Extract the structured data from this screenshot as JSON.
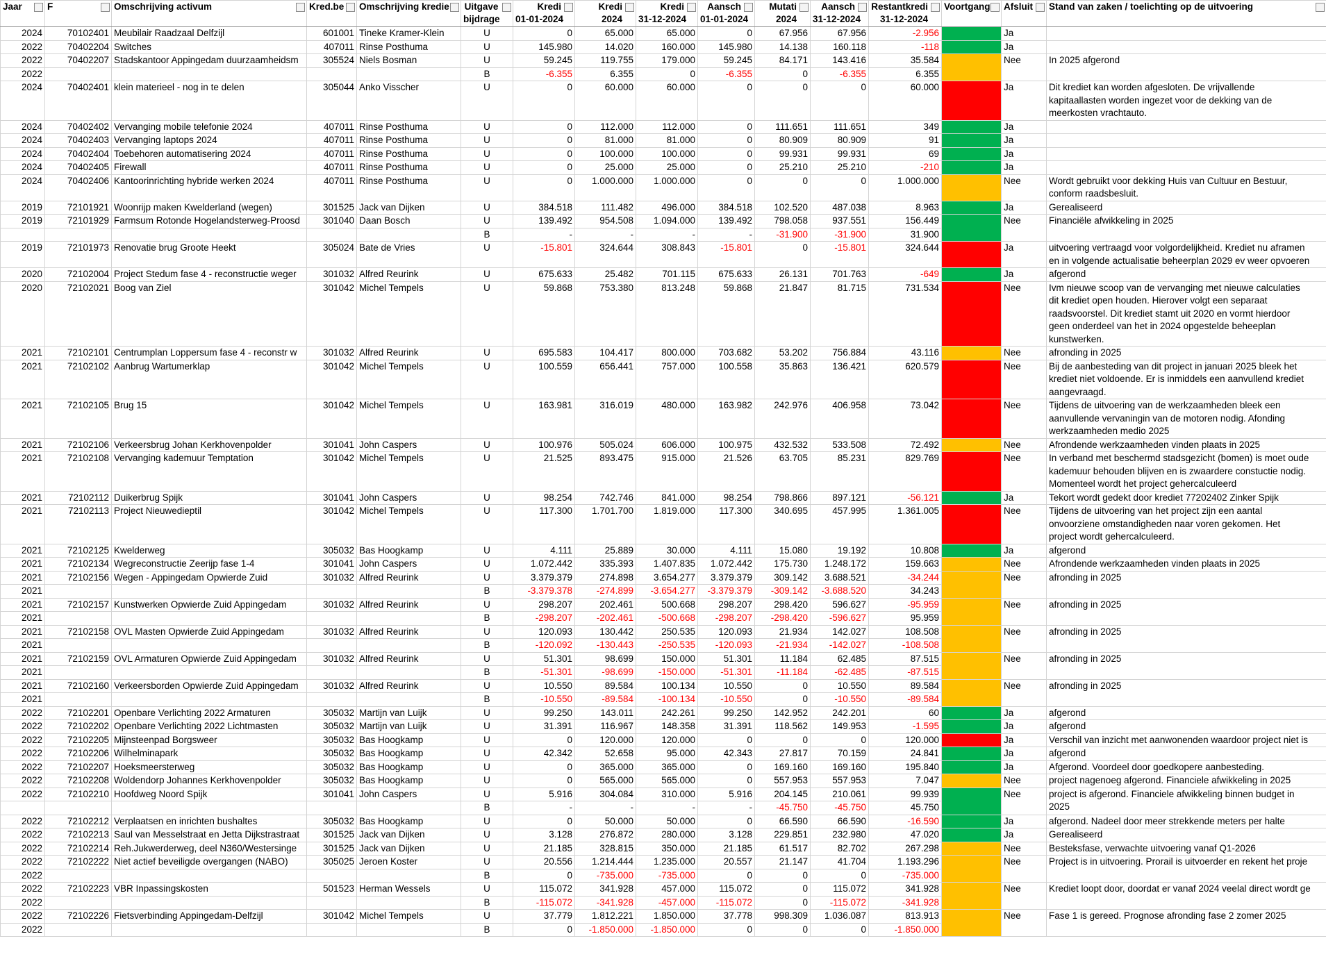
{
  "header": [
    [
      "Jaar"
    ],
    [
      "F"
    ],
    [
      "Omschrijving activum"
    ],
    [
      "Kred.be"
    ],
    [
      "Omschrijving kredie"
    ],
    [
      "Uitgave",
      "bijdrage"
    ],
    [
      "Kredi",
      "01-01-2024"
    ],
    [
      "Kredi",
      "2024"
    ],
    [
      "Kredi",
      "31-12-2024"
    ],
    [
      "Aansch",
      "01-01-2024"
    ],
    [
      "Mutati",
      "2024"
    ],
    [
      "Aansch",
      "31-12-2024"
    ],
    [
      "Restantkredi",
      "31-12-2024"
    ],
    [
      "Voortgang"
    ],
    [
      "Afsluit"
    ],
    [
      "Stand van zaken / toelichting op de uitvoering"
    ]
  ],
  "rows": [
    [
      "2024",
      "70102401",
      "Meubilair Raadzaal Delfzijl",
      "601001",
      "Tineke Kramer-Klein",
      "U",
      "0",
      "65.000",
      "65.000",
      "0",
      "67.956",
      "67.956",
      "-2.956",
      "#00b050",
      "Ja",
      null
    ],
    [
      "2022",
      "70402204",
      "Switches",
      "407011",
      "Rinse Posthuma",
      "U",
      "145.980",
      "14.020",
      "160.000",
      "145.980",
      "14.138",
      "160.118",
      "-118",
      "#00b050",
      "Ja",
      null
    ],
    [
      "2022",
      "70402207",
      "Stadskantoor Appingedam duurzaamheidsm",
      "305524",
      "Niels Bosman",
      "U",
      "59.245",
      "119.755",
      "179.000",
      "59.245",
      "84.171",
      "143.416",
      "35.584",
      "#ffc000",
      "Nee",
      [
        "In 2025 afgerond"
      ]
    ],
    [
      "2022",
      null,
      null,
      null,
      null,
      "B",
      "-6.355",
      "6.355",
      "0",
      "-6.355",
      "0",
      "-6.355",
      "6.355",
      null,
      null,
      null
    ],
    [
      "2024",
      "70402401",
      "klein materieel - nog in te delen",
      "305044",
      "Anko Visscher",
      "U",
      "0",
      "60.000",
      "60.000",
      "0",
      "0",
      "0",
      "60.000",
      "#ff0000",
      "Ja",
      [
        "Dit krediet kan worden afgesloten. De vrijvallende",
        "kapitaallasten worden ingezet voor de dekking van de",
        "meerkosten vrachtauto."
      ]
    ],
    [
      "2024",
      "70402402",
      "Vervanging mobile telefonie 2024",
      "407011",
      "Rinse Posthuma",
      "U",
      "0",
      "112.000",
      "112.000",
      "0",
      "111.651",
      "111.651",
      "349",
      "#00b050",
      "Ja",
      null
    ],
    [
      "2024",
      "70402403",
      "Vervanging laptops 2024",
      "407011",
      "Rinse Posthuma",
      "U",
      "0",
      "81.000",
      "81.000",
      "0",
      "80.909",
      "80.909",
      "91",
      "#00b050",
      "Ja",
      null
    ],
    [
      "2024",
      "70402404",
      "Toebehoren automatisering 2024",
      "407011",
      "Rinse Posthuma",
      "U",
      "0",
      "100.000",
      "100.000",
      "0",
      "99.931",
      "99.931",
      "69",
      "#00b050",
      "Ja",
      null
    ],
    [
      "2024",
      "70402405",
      "Firewall",
      "407011",
      "Rinse Posthuma",
      "U",
      "0",
      "25.000",
      "25.000",
      "0",
      "25.210",
      "25.210",
      "-210",
      "#00b050",
      "Ja",
      null
    ],
    [
      "2024",
      "70402406",
      "Kantoorinrichting hybride werken 2024",
      "407011",
      "Rinse Posthuma",
      "U",
      "0",
      "1.000.000",
      "1.000.000",
      "0",
      "0",
      "0",
      "1.000.000",
      "#ffc000",
      "Nee",
      [
        "Wordt gebruikt voor dekking Huis van Cultuur en Bestuur,",
        "conform raadsbesluit."
      ]
    ],
    [
      "2019",
      "72101921",
      "Woonrijp maken Kwelderland (wegen)",
      "301525",
      "Jack van Dijken",
      "U",
      "384.518",
      "111.482",
      "496.000",
      "384.518",
      "102.520",
      "487.038",
      "8.963",
      "#00b050",
      "Ja",
      [
        "Gerealiseerd"
      ]
    ],
    [
      "2019",
      "72101929",
      "Farmsum Rotonde Hogelandsterweg-Proosd",
      "301040",
      "Daan Bosch",
      "U",
      "139.492",
      "954.508",
      "1.094.000",
      "139.492",
      "798.058",
      "937.551",
      "156.449",
      "#00b050",
      "Nee",
      [
        "Financiële afwikkeling in 2025"
      ]
    ],
    [
      null,
      null,
      null,
      null,
      null,
      "B",
      "-",
      "-",
      "-",
      "-",
      "-31.900",
      "-31.900",
      "31.900",
      null,
      null,
      null
    ],
    [
      "2019",
      "72101973",
      "Renovatie brug Groote Heekt",
      "305024",
      "Bate de Vries",
      "U",
      "-15.801",
      "324.644",
      "308.843",
      "-15.801",
      "0",
      "-15.801",
      "324.644",
      "#ff0000",
      "Ja",
      [
        "uitvoering vertraagd voor volgordelijkheid. Krediet nu aframen",
        "en in volgende actualisatie beheerplan 2029 ev weer opvoeren"
      ]
    ],
    [
      "2020",
      "72102004",
      "Project Stedum fase 4 - reconstructie weger",
      "301032",
      "Alfred Reurink",
      "U",
      "675.633",
      "25.482",
      "701.115",
      "675.633",
      "26.131",
      "701.763",
      "-649",
      "#00b050",
      "Ja",
      [
        "afgerond"
      ]
    ],
    [
      "2020",
      "72102021",
      "Boog van Ziel",
      "301042",
      "Michel Tempels",
      "U",
      "59.868",
      "753.380",
      "813.248",
      "59.868",
      "21.847",
      "81.715",
      "731.534",
      "#ff0000",
      "Nee",
      [
        "Ivm nieuwe scoop van de vervanging met nieuwe calculaties",
        "dit krediet open houden. Hierover volgt een separaat",
        "raadsvoorstel. Dit krediet stamt uit 2020 en vormt hierdoor",
        "geen onderdeel van het in 2024 opgestelde beheeplan",
        "kunstwerken."
      ]
    ],
    [
      "2021",
      "72102101",
      "Centrumplan Loppersum fase 4 - reconstr w",
      "301032",
      "Alfred Reurink",
      "U",
      "695.583",
      "104.417",
      "800.000",
      "703.682",
      "53.202",
      "756.884",
      "43.116",
      "#ffc000",
      "Nee",
      [
        "afronding in 2025"
      ]
    ],
    [
      "2021",
      "72102102",
      "Aanbrug Wartumerklap",
      "301042",
      "Michel Tempels",
      "U",
      "100.559",
      "656.441",
      "757.000",
      "100.558",
      "35.863",
      "136.421",
      "620.579",
      "#ff0000",
      "Nee",
      [
        "Bij de aanbesteding van dit project in januari 2025 bleek het",
        "krediet niet voldoende. Er is inmiddels een aanvullend krediet",
        "aangevraagd."
      ]
    ],
    [
      "2021",
      "72102105",
      "Brug 15",
      "301042",
      "Michel Tempels",
      "U",
      "163.981",
      "316.019",
      "480.000",
      "163.982",
      "242.976",
      "406.958",
      "73.042",
      "#ff0000",
      "Nee",
      [
        "Tijdens de uitvoering van de werkzaamheden bleek een",
        "aanvullende vervaningin van de motoren nodig. Afonding",
        "werkzaamheden medio 2025"
      ]
    ],
    [
      "2021",
      "72102106",
      "Verkeersbrug Johan Kerkhovenpolder",
      "301041",
      "John Caspers",
      "U",
      "100.976",
      "505.024",
      "606.000",
      "100.975",
      "432.532",
      "533.508",
      "72.492",
      "#ffc000",
      "Nee",
      [
        "Afrondende werkzaamheden vinden plaats in 2025"
      ]
    ],
    [
      "2021",
      "72102108",
      "Vervanging kademuur Temptation",
      "301042",
      "Michel Tempels",
      "U",
      "21.525",
      "893.475",
      "915.000",
      "21.526",
      "63.705",
      "85.231",
      "829.769",
      "#ff0000",
      "Nee",
      [
        "In verband met beschermd stadsgezicht (bomen) is moet oude",
        "kademuur behouden blijven en is zwaardere constuctie nodig.",
        "Momenteel wordt het project gehercalculeerd"
      ]
    ],
    [
      "2021",
      "72102112",
      "Duikerbrug Spijk",
      "301041",
      "John Caspers",
      "U",
      "98.254",
      "742.746",
      "841.000",
      "98.254",
      "798.866",
      "897.121",
      "-56.121",
      "#00b050",
      "Ja",
      [
        "Tekort wordt gedekt door krediet 77202402 Zinker Spijk"
      ]
    ],
    [
      "2021",
      "72102113",
      "Project Nieuwedieptil",
      "301042",
      "Michel Tempels",
      "U",
      "117.300",
      "1.701.700",
      "1.819.000",
      "117.300",
      "340.695",
      "457.995",
      "1.361.005",
      "#ff0000",
      "Nee",
      [
        "Tijdens de uitvoering van het project zijn een aantal",
        "onvoorziene omstandigheden naar voren gekomen. Het",
        "project wordt gehercalculeerd."
      ]
    ],
    [
      "2021",
      "72102125",
      "Kwelderweg",
      "305032",
      "Bas Hoogkamp",
      "U",
      "4.111",
      "25.889",
      "30.000",
      "4.111",
      "15.080",
      "19.192",
      "10.808",
      "#00b050",
      "Ja",
      [
        "afgerond"
      ]
    ],
    [
      "2021",
      "72102134",
      "Wegreconstructie Zeerijp fase 1-4",
      "301041",
      "John Caspers",
      "U",
      "1.072.442",
      "335.393",
      "1.407.835",
      "1.072.442",
      "175.730",
      "1.248.172",
      "159.663",
      "#ffc000",
      "Nee",
      [
        "Afrondende werkzaamheden vinden plaats in 2025"
      ]
    ],
    [
      "2021",
      "72102156",
      "Wegen - Appingedam Opwierde Zuid",
      "301032",
      "Alfred Reurink",
      "U",
      "3.379.379",
      "274.898",
      "3.654.277",
      "3.379.379",
      "309.142",
      "3.688.521",
      "-34.244",
      "#ffc000",
      "Nee",
      [
        "afronding in 2025"
      ]
    ],
    [
      "2021",
      null,
      null,
      null,
      null,
      "B",
      "-3.379.378",
      "-274.899",
      "-3.654.277",
      "-3.379.379",
      "-309.142",
      "-3.688.520",
      "34.243",
      null,
      null,
      null
    ],
    [
      "2021",
      "72102157",
      "Kunstwerken Opwierde Zuid Appingedam",
      "301032",
      "Alfred Reurink",
      "U",
      "298.207",
      "202.461",
      "500.668",
      "298.207",
      "298.420",
      "596.627",
      "-95.959",
      "#ffc000",
      "Nee",
      [
        "afronding in 2025"
      ]
    ],
    [
      "2021",
      null,
      null,
      null,
      null,
      "B",
      "-298.207",
      "-202.461",
      "-500.668",
      "-298.207",
      "-298.420",
      "-596.627",
      "95.959",
      null,
      null,
      null
    ],
    [
      "2021",
      "72102158",
      "OVL Masten Opwierde Zuid Appingedam",
      "301032",
      "Alfred Reurink",
      "U",
      "120.093",
      "130.442",
      "250.535",
      "120.093",
      "21.934",
      "142.027",
      "108.508",
      "#ffc000",
      "Nee",
      [
        "afronding in 2025"
      ]
    ],
    [
      "2021",
      null,
      null,
      null,
      null,
      "B",
      "-120.092",
      "-130.443",
      "-250.535",
      "-120.093",
      "-21.934",
      "-142.027",
      "-108.508",
      null,
      null,
      null
    ],
    [
      "2021",
      "72102159",
      "OVL Armaturen Opwierde Zuid Appingedam",
      "301032",
      "Alfred Reurink",
      "U",
      "51.301",
      "98.699",
      "150.000",
      "51.301",
      "11.184",
      "62.485",
      "87.515",
      "#ffc000",
      "Nee",
      [
        "afronding in 2025"
      ]
    ],
    [
      "2021",
      null,
      null,
      null,
      null,
      "B",
      "-51.301",
      "-98.699",
      "-150.000",
      "-51.301",
      "-11.184",
      "-62.485",
      "-87.515",
      null,
      null,
      null
    ],
    [
      "2021",
      "72102160",
      "Verkeersborden Opwierde Zuid Appingedam",
      "301032",
      "Alfred Reurink",
      "U",
      "10.550",
      "89.584",
      "100.134",
      "10.550",
      "0",
      "10.550",
      "89.584",
      "#ffc000",
      "Nee",
      [
        "afronding in 2025"
      ]
    ],
    [
      "2021",
      null,
      null,
      null,
      null,
      "B",
      "-10.550",
      "-89.584",
      "-100.134",
      "-10.550",
      "0",
      "-10.550",
      "-89.584",
      null,
      null,
      null
    ],
    [
      "2022",
      "72102201",
      "Openbare Verlichting 2022 Armaturen",
      "305032",
      "Martijn van Luijk",
      "U",
      "99.250",
      "143.011",
      "242.261",
      "99.250",
      "142.952",
      "242.201",
      "60",
      "#00b050",
      "Ja",
      [
        "afgerond"
      ]
    ],
    [
      "2022",
      "72102202",
      "Openbare Verlichting 2022 Lichtmasten",
      "305032",
      "Martijn van Luijk",
      "U",
      "31.391",
      "116.967",
      "148.358",
      "31.391",
      "118.562",
      "149.953",
      "-1.595",
      "#00b050",
      "Ja",
      [
        "afgerond"
      ]
    ],
    [
      "2022",
      "72102205",
      "Mijnsteenpad Borgsweer",
      "305032",
      "Bas Hoogkamp",
      "U",
      "0",
      "120.000",
      "120.000",
      "0",
      "0",
      "0",
      "120.000",
      "#ff0000",
      "Ja",
      [
        "Verschil van inzicht met aanwonenden waardoor project niet is"
      ]
    ],
    [
      "2022",
      "72102206",
      "Wilhelminapark",
      "305032",
      "Bas Hoogkamp",
      "U",
      "42.342",
      "52.658",
      "95.000",
      "42.343",
      "27.817",
      "70.159",
      "24.841",
      "#00b050",
      "Ja",
      [
        "afgerond"
      ]
    ],
    [
      "2022",
      "72102207",
      "Hoeksmeersterweg",
      "305032",
      "Bas Hoogkamp",
      "U",
      "0",
      "365.000",
      "365.000",
      "0",
      "169.160",
      "169.160",
      "195.840",
      "#00b050",
      "Ja",
      [
        "Afgerond. Voordeel door goedkopere aanbesteding."
      ]
    ],
    [
      "2022",
      "72102208",
      "Woldendorp Johannes Kerkhovenpolder",
      "305032",
      "Bas Hoogkamp",
      "U",
      "0",
      "565.000",
      "565.000",
      "0",
      "557.953",
      "557.953",
      "7.047",
      "#ffc000",
      "Nee",
      [
        "project nagenoeg afgerond. Financiele afwikkeling in 2025"
      ]
    ],
    [
      "2022",
      "72102210",
      "Hoofdweg Noord Spijk",
      "301041",
      "John Caspers",
      "U",
      "5.916",
      "304.084",
      "310.000",
      "5.916",
      "204.145",
      "210.061",
      "99.939",
      "#00b050",
      "Nee",
      [
        "project is afgerond. Financiele afwikkeling binnen budget in",
        "2025"
      ]
    ],
    [
      null,
      null,
      null,
      null,
      null,
      "B",
      "-",
      "-",
      "-",
      "-",
      "-45.750",
      "-45.750",
      "45.750",
      null,
      null,
      null
    ],
    [
      "2022",
      "72102212",
      "Verplaatsen en inrichten bushaltes",
      "305032",
      "Bas Hoogkamp",
      "U",
      "0",
      "50.000",
      "50.000",
      "0",
      "66.590",
      "66.590",
      "-16.590",
      "#00b050",
      "Ja",
      [
        "afgerond. Nadeel door meer strekkende meters per halte"
      ]
    ],
    [
      "2022",
      "72102213",
      "Saul van Messelstraat en Jetta Dijkstrastraat",
      "301525",
      "Jack van Dijken",
      "U",
      "3.128",
      "276.872",
      "280.000",
      "3.128",
      "229.851",
      "232.980",
      "47.020",
      "#00b050",
      "Ja",
      [
        "Gerealiseerd"
      ]
    ],
    [
      "2022",
      "72102214",
      "Reh.Jukwerderweg, deel N360/Westersinge",
      "301525",
      "Jack van Dijken",
      "U",
      "21.185",
      "328.815",
      "350.000",
      "21.185",
      "61.517",
      "82.702",
      "267.298",
      "#ffc000",
      "Nee",
      [
        "Besteksfase, verwachte uitvoering vanaf Q1-2026"
      ]
    ],
    [
      "2022",
      "72102222",
      "Niet actief beveiligde overgangen (NABO)",
      "305025",
      "Jeroen Koster",
      "U",
      "20.556",
      "1.214.444",
      "1.235.000",
      "20.557",
      "21.147",
      "41.704",
      "1.193.296",
      "#ffc000",
      "Nee",
      [
        "Project is in uitvoering. Prorail is uitvoerder en rekent het proje"
      ]
    ],
    [
      "2022",
      null,
      null,
      null,
      null,
      "B",
      "0",
      "-735.000",
      "-735.000",
      "0",
      "0",
      "0",
      "-735.000",
      null,
      null,
      null
    ],
    [
      "2022",
      "72102223",
      "VBR Inpassingskosten",
      "501523",
      "Herman Wessels",
      "U",
      "115.072",
      "341.928",
      "457.000",
      "115.072",
      "0",
      "115.072",
      "341.928",
      "#ffc000",
      "Nee",
      [
        "Krediet loopt door, doordat er vanaf 2024 veelal direct wordt ge"
      ]
    ],
    [
      "2022",
      null,
      null,
      null,
      null,
      "B",
      "-115.072",
      "-341.928",
      "-457.000",
      "-115.072",
      "0",
      "-115.072",
      "-341.928",
      null,
      null,
      null
    ],
    [
      "2022",
      "72102226",
      "Fietsverbinding Appingedam-Delfzijl",
      "301042",
      "Michel Tempels",
      "U",
      "37.779",
      "1.812.221",
      "1.850.000",
      "37.778",
      "998.309",
      "1.036.087",
      "813.913",
      "#ffc000",
      "Nee",
      [
        "Fase 1 is gereed. Prognose afronding fase 2 zomer 2025"
      ]
    ],
    [
      "2022",
      null,
      null,
      null,
      null,
      "B",
      "0",
      "-1.850.000",
      "-1.850.000",
      "0",
      "0",
      "0",
      "-1.850.000",
      null,
      null,
      null
    ]
  ]
}
